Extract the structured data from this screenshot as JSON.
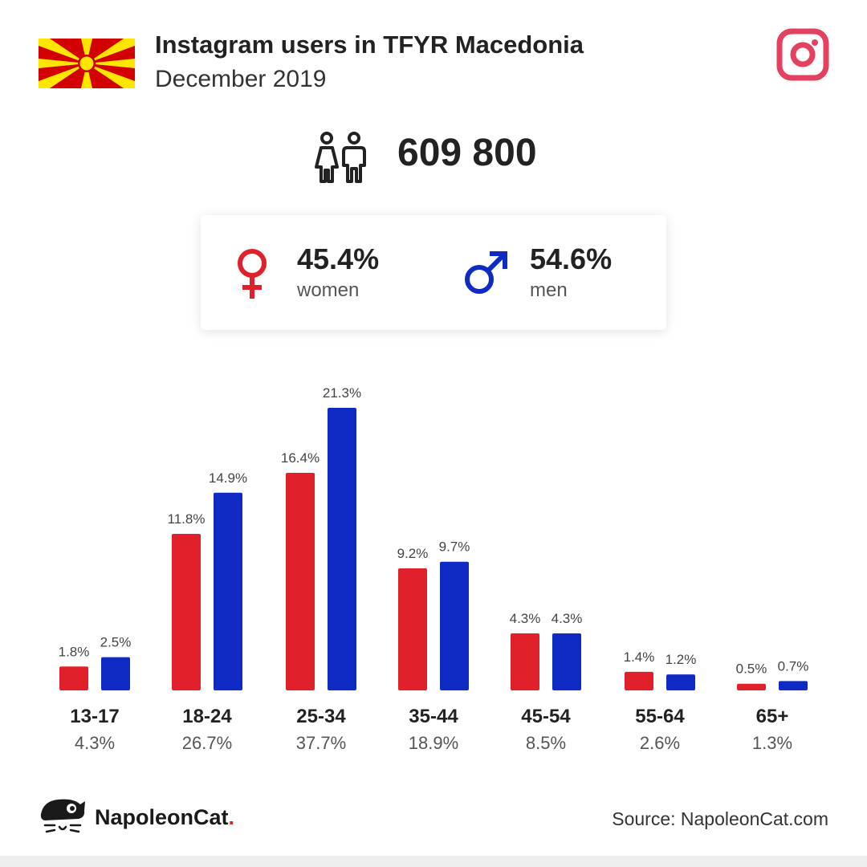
{
  "header": {
    "title": "Instagram users in TFYR Macedonia",
    "subtitle": "December 2019"
  },
  "total": {
    "value": "609 800"
  },
  "gender": {
    "women": {
      "pct": "45.4%",
      "label": "women"
    },
    "men": {
      "pct": "54.6%",
      "label": "men"
    }
  },
  "colors": {
    "women": "#e0212b",
    "men": "#0f2bc4",
    "instagram": "#e4405f"
  },
  "chart_data": {
    "type": "bar",
    "categories": [
      "13-17",
      "18-24",
      "25-34",
      "35-44",
      "45-54",
      "55-64",
      "65+"
    ],
    "category_totals": [
      "4.3%",
      "26.7%",
      "37.7%",
      "18.9%",
      "8.5%",
      "2.6%",
      "1.3%"
    ],
    "series": [
      {
        "key": "women",
        "values": [
          1.8,
          11.8,
          16.4,
          9.2,
          4.3,
          1.4,
          0.5
        ],
        "labels": [
          "1.8%",
          "11.8%",
          "16.4%",
          "9.2%",
          "4.3%",
          "1.4%",
          "0.5%"
        ]
      },
      {
        "key": "men",
        "values": [
          2.5,
          14.9,
          21.3,
          9.7,
          4.3,
          1.2,
          0.7
        ],
        "labels": [
          "2.5%",
          "14.9%",
          "21.3%",
          "9.7%",
          "4.3%",
          "1.2%",
          "0.7%"
        ]
      }
    ],
    "ylim": [
      0,
      21.3
    ],
    "grid": false
  },
  "footer": {
    "brand": "NapoleonCat",
    "brand_dot": ".",
    "source": "Source: NapoleonCat.com"
  },
  "icons": {
    "flag": "macedonia-flag",
    "instagram": "instagram-icon",
    "people": "people-icon",
    "female": "female-symbol-icon",
    "male": "male-symbol-icon",
    "logo": "napoleoncat-logo"
  }
}
